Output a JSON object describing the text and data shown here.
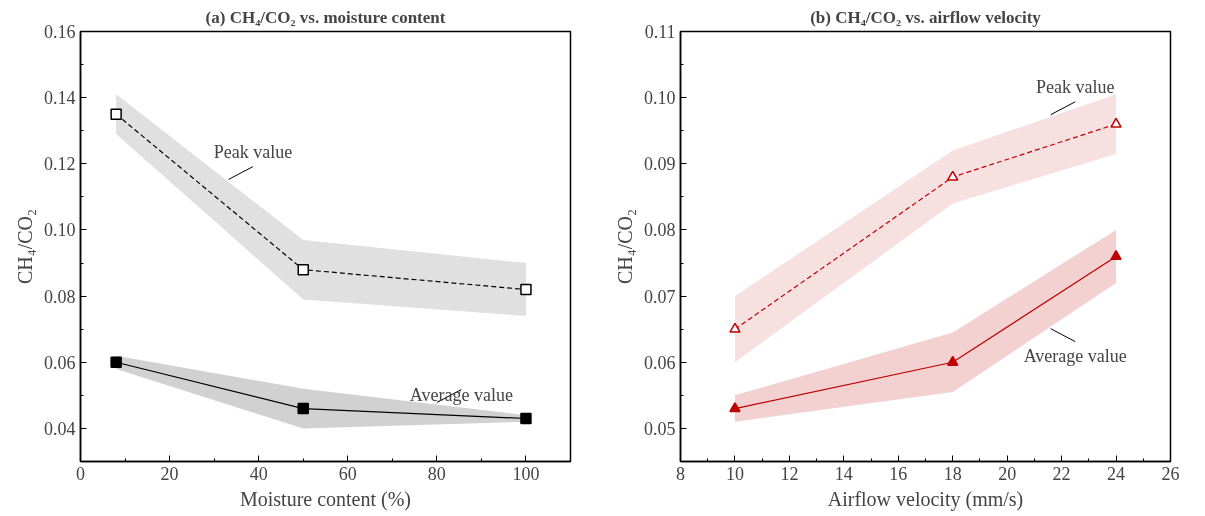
{
  "chart_data": [
    {
      "type": "line",
      "title": "(a) CH₄/CO₂ vs. moisture content",
      "xlabel": "Moisture content (%)",
      "ylabel": "CH₄/CO₂",
      "x": [
        8,
        50,
        100
      ],
      "xlim": [
        0,
        110
      ],
      "xticks": [
        0,
        20,
        40,
        60,
        80,
        100
      ],
      "ylim": [
        0.03,
        0.16
      ],
      "yticks": [
        0.04,
        0.06,
        0.08,
        {
          "value": 0.1,
          "label": "0.10"
        },
        0.12,
        0.14,
        0.16
      ],
      "grid": false,
      "marker": "square",
      "series": [
        {
          "name": "Peak value",
          "color": "#000000",
          "line_style": "dashed",
          "values": [
            0.135,
            0.088,
            0.082
          ],
          "lower": [
            0.129,
            0.079,
            0.074
          ],
          "upper": [
            0.141,
            0.097,
            0.09
          ]
        },
        {
          "name": "Average value",
          "color": "#000000",
          "line_style": "solid",
          "values": [
            0.06,
            0.046,
            0.043
          ],
          "lower": [
            0.058,
            0.04,
            0.042
          ],
          "upper": [
            0.062,
            0.052,
            0.044
          ]
        }
      ]
    },
    {
      "type": "line",
      "title": "(b) CH₄/CO₂ vs. airflow velocity",
      "xlabel": "Airflow velocity (mm/s)",
      "ylabel": "CH₄/CO₂",
      "x": [
        10,
        18,
        24
      ],
      "xlim": [
        8,
        26
      ],
      "xticks": [
        8,
        10,
        12,
        14,
        16,
        18,
        20,
        22,
        24,
        26
      ],
      "ylim": [
        0.045,
        0.11
      ],
      "yticks": [
        0.05,
        0.06,
        0.07,
        0.08,
        0.09,
        {
          "value": 0.1,
          "label": "0.10"
        },
        0.11
      ],
      "grid": false,
      "marker": "triangle",
      "series": [
        {
          "name": "Peak value",
          "color": "#c00000",
          "line_style": "dashed",
          "values": [
            0.065,
            0.088,
            0.096
          ],
          "lower": [
            0.06,
            0.084,
            0.0915
          ],
          "upper": [
            0.07,
            0.092,
            0.1005
          ]
        },
        {
          "name": "Average value",
          "color": "#c00000",
          "line_style": "solid",
          "values": [
            0.053,
            0.06,
            0.076
          ],
          "lower": [
            0.051,
            0.0555,
            0.072
          ],
          "upper": [
            0.055,
            0.0645,
            0.08
          ]
        }
      ]
    }
  ]
}
